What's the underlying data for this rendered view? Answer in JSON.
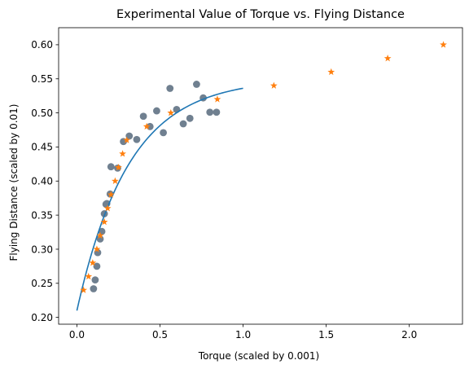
{
  "chart_data": {
    "type": "scatter",
    "title": "Experimental Value of Torque vs. Flying Distance",
    "xlabel": "Torque (scaled by 0.001)",
    "ylabel": "Flying Distance (scaled by 0.01)",
    "xlim": [
      -0.11,
      2.32
    ],
    "ylim": [
      0.19,
      0.625
    ],
    "grid": false,
    "xticks": [
      {
        "value": 0.0,
        "label": "0.0"
      },
      {
        "value": 0.5,
        "label": "0.5"
      },
      {
        "value": 1.0,
        "label": "1.0"
      },
      {
        "value": 1.5,
        "label": "1.5"
      },
      {
        "value": 2.0,
        "label": "2.0"
      }
    ],
    "yticks": [
      {
        "value": 0.2,
        "label": "0.20"
      },
      {
        "value": 0.25,
        "label": "0.25"
      },
      {
        "value": 0.3,
        "label": "0.30"
      },
      {
        "value": 0.35,
        "label": "0.35"
      },
      {
        "value": 0.4,
        "label": "0.40"
      },
      {
        "value": 0.45,
        "label": "0.45"
      },
      {
        "value": 0.5,
        "label": "0.50"
      },
      {
        "value": 0.55,
        "label": "0.55"
      },
      {
        "value": 0.6,
        "label": "0.60"
      }
    ],
    "series": [
      {
        "kind": "scatter-circle",
        "color": "#708090",
        "points": [
          [
            0.1,
            0.242
          ],
          [
            0.11,
            0.255
          ],
          [
            0.12,
            0.275
          ],
          [
            0.125,
            0.295
          ],
          [
            0.14,
            0.315
          ],
          [
            0.15,
            0.326
          ],
          [
            0.165,
            0.352
          ],
          [
            0.175,
            0.366
          ],
          [
            0.18,
            0.367
          ],
          [
            0.2,
            0.381
          ],
          [
            0.205,
            0.421
          ],
          [
            0.245,
            0.419
          ],
          [
            0.28,
            0.458
          ],
          [
            0.315,
            0.466
          ],
          [
            0.36,
            0.461
          ],
          [
            0.4,
            0.495
          ],
          [
            0.44,
            0.48
          ],
          [
            0.48,
            0.503
          ],
          [
            0.52,
            0.471
          ],
          [
            0.56,
            0.536
          ],
          [
            0.6,
            0.505
          ],
          [
            0.64,
            0.484
          ],
          [
            0.68,
            0.492
          ],
          [
            0.72,
            0.542
          ],
          [
            0.76,
            0.522
          ],
          [
            0.8,
            0.501
          ],
          [
            0.84,
            0.501
          ]
        ]
      },
      {
        "kind": "line",
        "color": "#1f77b4",
        "model": "saturation",
        "x_range": [
          0.0,
          1.0
        ],
        "params": {
          "base": 0.21,
          "amplitude": 0.34,
          "rate": 3.2
        }
      },
      {
        "kind": "scatter-star",
        "color": "#ff7f0e",
        "points": [
          [
            0.04,
            0.24
          ],
          [
            0.07,
            0.26
          ],
          [
            0.095,
            0.28
          ],
          [
            0.12,
            0.3
          ],
          [
            0.14,
            0.32
          ],
          [
            0.165,
            0.34
          ],
          [
            0.185,
            0.36
          ],
          [
            0.205,
            0.38
          ],
          [
            0.23,
            0.4
          ],
          [
            0.25,
            0.42
          ],
          [
            0.275,
            0.44
          ],
          [
            0.3,
            0.46
          ],
          [
            0.42,
            0.48
          ],
          [
            0.565,
            0.5
          ],
          [
            0.845,
            0.52
          ],
          [
            1.185,
            0.54
          ],
          [
            1.53,
            0.56
          ],
          [
            1.87,
            0.58
          ],
          [
            2.205,
            0.6
          ]
        ]
      }
    ]
  }
}
